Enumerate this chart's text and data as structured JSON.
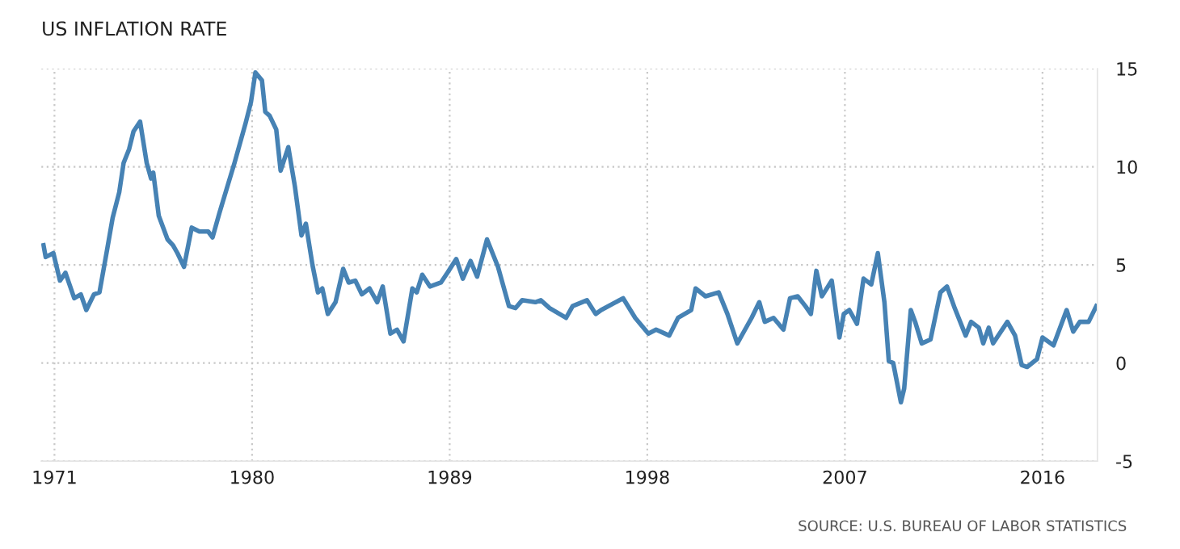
{
  "chart_data": {
    "type": "line",
    "title": "US INFLATION RATE",
    "annotations": [
      "SOURCE: U.S. BUREAU OF LABOR STATISTICS"
    ],
    "series": [
      {
        "color": "#4682b4",
        "x": [
          1970.5,
          1970.6,
          1970.95,
          1971.25,
          1971.5,
          1971.9,
          1972.2,
          1972.45,
          1972.8,
          1973.05,
          1973.4,
          1973.65,
          1973.95,
          1974.15,
          1974.4,
          1974.6,
          1974.9,
          1975.2,
          1975.4,
          1975.5,
          1975.75,
          1976.15,
          1976.4,
          1976.6,
          1976.9,
          1977.25,
          1977.6,
          1978.0,
          1978.2,
          1978.5,
          1978.85,
          1979.2,
          1979.7,
          1979.95,
          1980.15,
          1980.45,
          1980.6,
          1980.8,
          1981.1,
          1981.3,
          1981.65,
          1981.95,
          1982.25,
          1982.45,
          1982.75,
          1983.0,
          1983.2,
          1983.45,
          1983.8,
          1984.15,
          1984.4,
          1984.7,
          1985.0,
          1985.35,
          1985.7,
          1985.95,
          1986.3,
          1986.6,
          1986.9,
          1987.3,
          1987.5,
          1987.75,
          1988.1,
          1988.6,
          1988.9,
          1989.3,
          1989.6,
          1989.95,
          1990.25,
          1990.7,
          1991.2,
          1991.7,
          1992.0,
          1992.3,
          1992.9,
          1993.15,
          1993.55,
          1994.3,
          1994.6,
          1995.25,
          1995.65,
          1995.9,
          1996.9,
          1997.45,
          1998.05,
          1998.4,
          1999.0,
          1999.4,
          2000.0,
          2000.2,
          2000.65,
          2001.25,
          2001.65,
          2002.1,
          2002.4,
          2002.75,
          2003.1,
          2003.35,
          2003.75,
          2004.2,
          2004.5,
          2004.85,
          2005.2,
          2005.45,
          2005.7,
          2005.95,
          2006.4,
          2006.75,
          2006.95,
          2007.2,
          2007.55,
          2007.85,
          2008.2,
          2008.5,
          2008.8,
          2009.0,
          2009.2,
          2009.55,
          2009.7,
          2010.0,
          2010.2,
          2010.5,
          2010.9,
          2011.35,
          2011.65,
          2012.0,
          2012.5,
          2012.75,
          2013.1,
          2013.3,
          2013.55,
          2013.75,
          2014.4,
          2014.75,
          2015.05,
          2015.3,
          2015.75,
          2016.0,
          2016.5,
          2017.1,
          2017.4,
          2017.7,
          2018.1,
          2018.45
        ],
        "values": [
          6.0,
          5.4,
          5.6,
          4.2,
          4.6,
          3.3,
          3.5,
          2.7,
          3.5,
          3.6,
          5.8,
          7.4,
          8.7,
          10.2,
          10.9,
          11.8,
          12.3,
          10.2,
          9.4,
          9.7,
          7.5,
          6.3,
          6.0,
          5.6,
          4.9,
          6.9,
          6.7,
          6.7,
          6.4,
          7.6,
          8.9,
          10.2,
          12.2,
          13.3,
          14.8,
          14.4,
          12.8,
          12.6,
          11.9,
          9.8,
          11.0,
          9.0,
          6.5,
          7.1,
          5.0,
          3.6,
          3.8,
          2.5,
          3.1,
          4.8,
          4.1,
          4.2,
          3.5,
          3.8,
          3.1,
          3.9,
          1.5,
          1.7,
          1.1,
          3.8,
          3.6,
          4.5,
          3.9,
          4.1,
          4.6,
          5.3,
          4.3,
          5.2,
          4.4,
          6.3,
          4.9,
          2.9,
          2.8,
          3.2,
          3.1,
          3.2,
          2.8,
          2.3,
          2.9,
          3.2,
          2.5,
          2.7,
          3.3,
          2.3,
          1.5,
          1.7,
          1.4,
          2.3,
          2.7,
          3.8,
          3.4,
          3.6,
          2.5,
          1.0,
          1.6,
          2.3,
          3.1,
          2.1,
          2.3,
          1.7,
          3.3,
          3.4,
          2.9,
          2.5,
          4.7,
          3.4,
          4.2,
          1.3,
          2.5,
          2.7,
          2.0,
          4.3,
          4.0,
          5.6,
          3.1,
          0.1,
          0.0,
          -2.0,
          -1.3,
          2.7,
          2.1,
          1.0,
          1.2,
          3.6,
          3.9,
          2.8,
          1.4,
          2.1,
          1.8,
          1.0,
          1.8,
          1.0,
          2.1,
          1.4,
          -0.1,
          -0.2,
          0.2,
          1.3,
          0.9,
          2.7,
          1.6,
          2.1,
          2.1,
          2.9
        ]
      }
    ],
    "xlim": [
      1970.4,
      2018.5
    ],
    "xticks": [
      1971,
      1980,
      1989,
      1998,
      2007,
      2016
    ],
    "ylim": [
      -5,
      15
    ],
    "yticks": [
      -5,
      0,
      5,
      10,
      15
    ],
    "grid": true,
    "legend": false,
    "line_style": "solid",
    "marker": "none"
  }
}
